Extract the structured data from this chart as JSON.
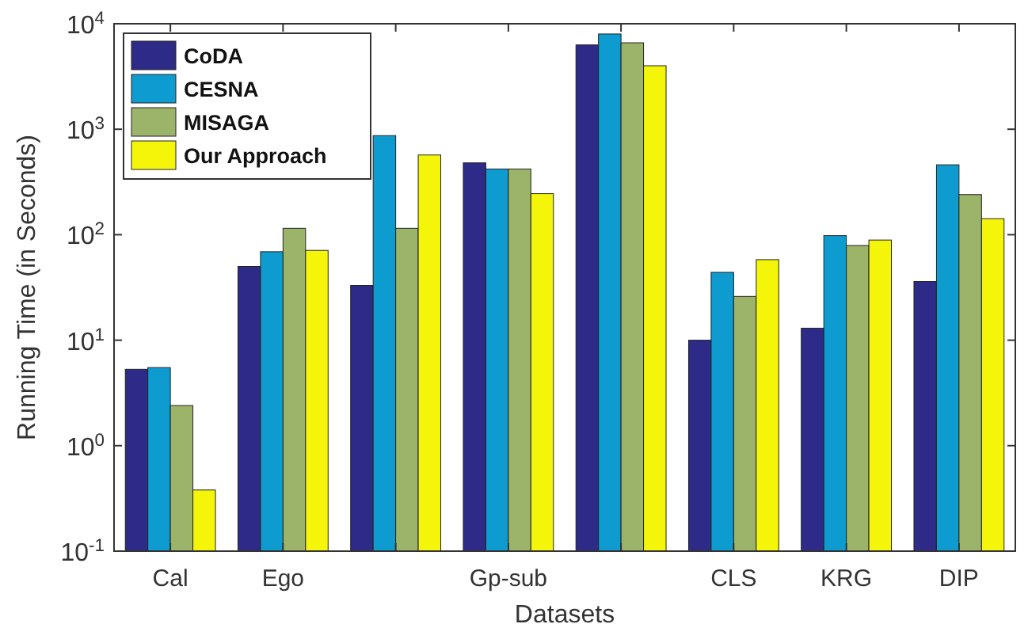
{
  "chart_data": {
    "type": "bar",
    "xlabel": "Datasets",
    "ylabel": "Running Time (in Seconds)",
    "categories": [
      "Cal",
      "Ego",
      null,
      "Gp-sub",
      null,
      "CLS",
      "KRG",
      "DIP"
    ],
    "series": [
      {
        "name": "CoDA",
        "color": "#2e2a87",
        "values": [
          5.3,
          50,
          33,
          480,
          6300,
          10,
          13,
          36
        ]
      },
      {
        "name": "CESNA",
        "color": "#0e9bd0",
        "values": [
          5.5,
          69,
          870,
          420,
          8000,
          44,
          98,
          460
        ]
      },
      {
        "name": "MISAGA",
        "color": "#9bb469",
        "values": [
          2.4,
          115,
          115,
          420,
          6600,
          26,
          79,
          240
        ]
      },
      {
        "name": "Our Approach",
        "color": "#f5f50a",
        "values": [
          0.38,
          71,
          570,
          245,
          4000,
          58,
          89,
          142
        ]
      }
    ],
    "log": true,
    "ylim": [
      0.1,
      10000
    ],
    "yticks": [
      {
        "value": 0.1,
        "label": "10$^{-1}$"
      },
      {
        "value": 1,
        "label": "10$^{0}$"
      },
      {
        "value": 10,
        "label": "10$^{1}$"
      },
      {
        "value": 100,
        "label": "10$^{2}$"
      },
      {
        "value": 1000,
        "label": "10$^{3}$"
      },
      {
        "value": 10000,
        "label": "10$^{4}$"
      }
    ],
    "grid": false,
    "legend": "top left"
  }
}
